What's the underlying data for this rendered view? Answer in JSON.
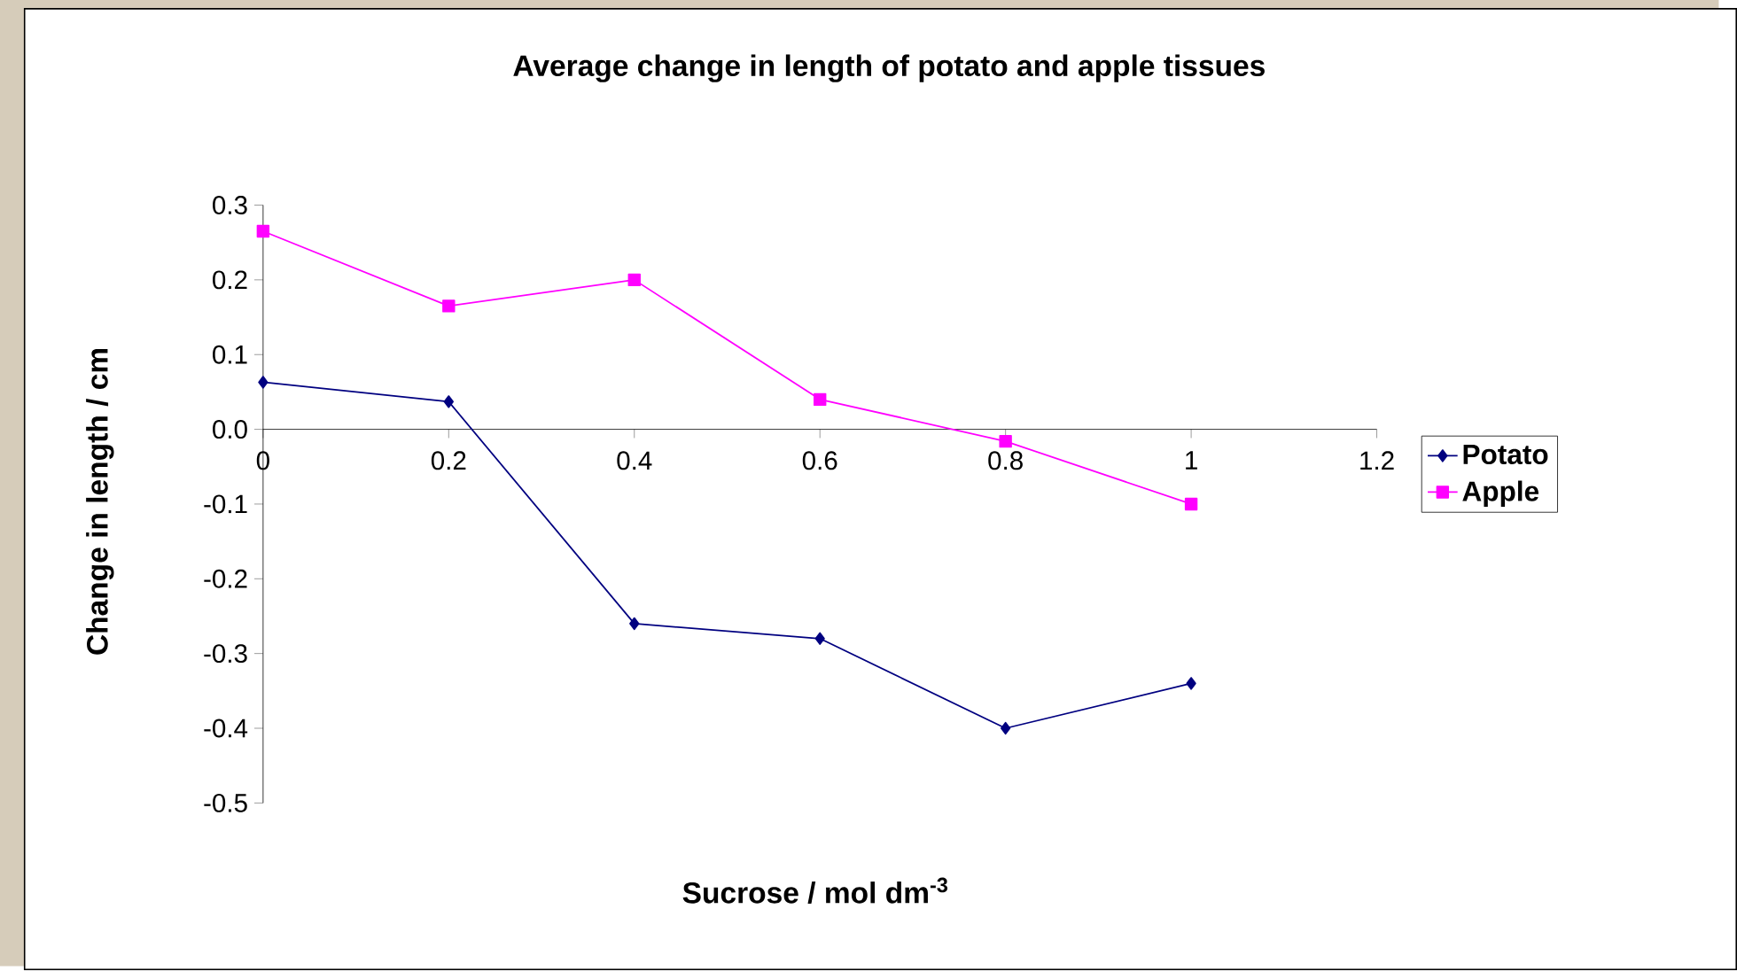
{
  "chart_data": {
    "type": "line",
    "title": "Average change in length of potato and apple tissues",
    "xlabel": "Sucrose / mol dm$^{-3}$",
    "ylabel": "Change in length / cm",
    "x": [
      0,
      0.2,
      0.4,
      0.6,
      0.8,
      1
    ],
    "series": [
      {
        "name": "Potato",
        "color": "#000080",
        "marker": "diamond",
        "values": [
          0.063,
          0.037,
          -0.26,
          -0.28,
          -0.4,
          -0.34
        ]
      },
      {
        "name": "Apple",
        "color": "#ff00ff",
        "marker": "square",
        "values": [
          0.265,
          0.165,
          0.2,
          0.04,
          -0.016,
          -0.1
        ]
      }
    ],
    "xlim": [
      0,
      1.2
    ],
    "xticks": [
      0,
      0.2,
      0.4,
      0.6,
      0.8,
      1,
      1.2
    ],
    "ylim": [
      -0.5,
      0.3
    ],
    "yticks": [
      0.3,
      0.2,
      0.1,
      {
        "value": 0,
        "label": "0.0"
      },
      -0.1,
      -0.2,
      -0.3,
      -0.4,
      -0.5
    ],
    "legend": "right",
    "grid": false
  }
}
